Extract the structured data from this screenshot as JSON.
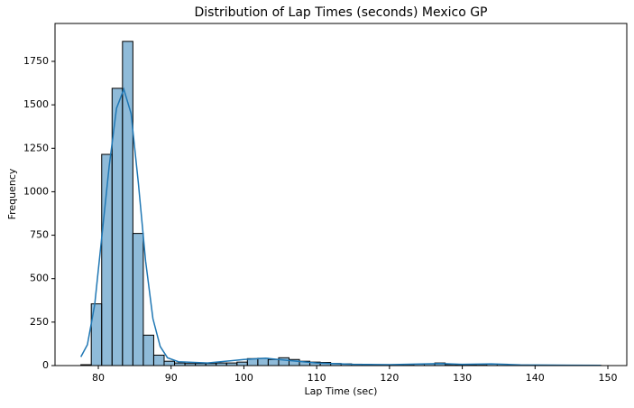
{
  "chart_data": {
    "type": "histogram",
    "title": "Distribution of Lap Times (seconds) Mexico GP",
    "xlabel": "Lap Time (sec)",
    "ylabel": "Frequency",
    "bins": [
      77.6,
      79.03,
      80.46,
      81.89,
      83.32,
      84.75,
      86.18,
      87.61,
      89.04,
      90.47,
      91.9,
      93.33,
      94.76,
      96.19,
      97.62,
      99.05,
      100.48,
      101.91,
      103.34,
      104.77,
      106.2,
      107.63,
      109.06,
      110.49,
      111.92,
      113.35,
      114.78,
      116.21,
      117.64,
      119.07,
      120.5,
      121.93,
      123.36,
      124.79,
      126.22,
      127.65,
      129.08,
      130.51,
      131.94,
      133.37,
      134.8,
      136.23,
      137.66,
      139.09,
      140.52,
      141.95,
      143.38,
      144.81,
      146.24,
      147.67,
      149.1
    ],
    "values": [
      5,
      355,
      1215,
      1595,
      1865,
      760,
      175,
      60,
      25,
      15,
      12,
      12,
      12,
      15,
      15,
      20,
      40,
      42,
      35,
      45,
      35,
      25,
      20,
      18,
      12,
      10,
      8,
      6,
      5,
      5,
      5,
      6,
      8,
      10,
      15,
      6,
      4,
      4,
      6,
      8,
      8,
      5,
      3,
      2,
      2,
      2,
      1,
      1,
      1,
      1
    ],
    "color": "#1f77b4",
    "kde": {
      "color": "#1f77b4",
      "x": [
        77.6,
        78.5,
        79.5,
        80.5,
        81.5,
        82.5,
        83.5,
        84.5,
        85.5,
        86.5,
        87.5,
        88.5,
        89.5,
        91,
        95,
        100,
        103,
        106,
        110,
        115,
        120,
        127,
        130,
        134,
        138,
        145,
        149
      ],
      "values": [
        50,
        120,
        350,
        750,
        1150,
        1480,
        1590,
        1450,
        1050,
        600,
        270,
        110,
        45,
        22,
        15,
        35,
        42,
        30,
        15,
        7,
        5,
        12,
        7,
        10,
        4,
        2,
        1
      ]
    },
    "xlim": [
      74.05,
      152.6
    ],
    "ylim": [
      0,
      1968
    ],
    "xticks": [
      80,
      90,
      100,
      110,
      120,
      130,
      140,
      150
    ],
    "yticks": [
      0,
      250,
      500,
      750,
      1000,
      1250,
      1500,
      1750
    ]
  }
}
